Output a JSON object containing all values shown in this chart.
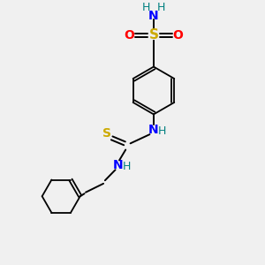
{
  "background_color": "#f0f0f0",
  "atom_colors": {
    "C": "#000000",
    "N": "#0000ff",
    "O": "#ff0000",
    "S_sulfo": "#ccaa00",
    "S_thio": "#ccaa00",
    "H_label": "#008080"
  },
  "bond_color": "#000000",
  "figsize": [
    3.0,
    3.0
  ],
  "dpi": 100,
  "xlim": [
    0,
    10
  ],
  "ylim": [
    0,
    10
  ]
}
